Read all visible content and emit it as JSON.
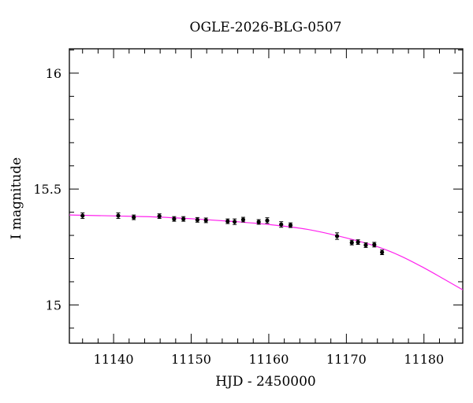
{
  "chart_data": {
    "type": "scatter",
    "title": "OGLE-2026-BLG-0507",
    "xlabel": "HJD - 2450000",
    "ylabel": "I magnitude",
    "xlim": [
      11134.3,
      11185
    ],
    "ylim": [
      16.105,
      14.835
    ],
    "y_inverted": true,
    "x_major_ticks": [
      11140,
      11150,
      11160,
      11170,
      11180
    ],
    "x_tick_labels": [
      "11140",
      "11150",
      "11160",
      "11170",
      "11180"
    ],
    "x_minor_step": 2,
    "y_major_ticks": [
      15,
      15.5,
      16
    ],
    "y_tick_labels": [
      "15",
      "15.5",
      "16"
    ],
    "y_minor_step": 0.1,
    "grid": false,
    "series": [
      {
        "kind": "points_with_errorbars",
        "color": "#000000",
        "points": [
          {
            "x": 11136.0,
            "y": 15.385,
            "err": 0.012
          },
          {
            "x": 11140.6,
            "y": 15.385,
            "err": 0.012
          },
          {
            "x": 11142.6,
            "y": 15.378,
            "err": 0.01
          },
          {
            "x": 11145.9,
            "y": 15.383,
            "err": 0.01
          },
          {
            "x": 11147.8,
            "y": 15.371,
            "err": 0.01
          },
          {
            "x": 11149.0,
            "y": 15.371,
            "err": 0.01
          },
          {
            "x": 11150.8,
            "y": 15.367,
            "err": 0.01
          },
          {
            "x": 11151.9,
            "y": 15.365,
            "err": 0.01
          },
          {
            "x": 11154.7,
            "y": 15.361,
            "err": 0.01
          },
          {
            "x": 11155.6,
            "y": 15.359,
            "err": 0.012
          },
          {
            "x": 11156.7,
            "y": 15.368,
            "err": 0.01
          },
          {
            "x": 11158.7,
            "y": 15.358,
            "err": 0.01
          },
          {
            "x": 11159.8,
            "y": 15.364,
            "err": 0.012
          },
          {
            "x": 11161.6,
            "y": 15.347,
            "err": 0.012
          },
          {
            "x": 11162.8,
            "y": 15.344,
            "err": 0.01
          },
          {
            "x": 11168.8,
            "y": 15.297,
            "err": 0.014
          },
          {
            "x": 11170.7,
            "y": 15.269,
            "err": 0.01
          },
          {
            "x": 11171.5,
            "y": 15.271,
            "err": 0.01
          },
          {
            "x": 11172.5,
            "y": 15.258,
            "err": 0.01
          },
          {
            "x": 11173.6,
            "y": 15.26,
            "err": 0.01
          },
          {
            "x": 11174.6,
            "y": 15.227,
            "err": 0.01
          }
        ]
      },
      {
        "kind": "model_curve",
        "color": "#ff22ee",
        "points": [
          {
            "x": 11134.3,
            "y": 15.388
          },
          {
            "x": 11140,
            "y": 15.384
          },
          {
            "x": 11145,
            "y": 15.38
          },
          {
            "x": 11150,
            "y": 15.372
          },
          {
            "x": 11155,
            "y": 15.361
          },
          {
            "x": 11160,
            "y": 15.347
          },
          {
            "x": 11165,
            "y": 15.326
          },
          {
            "x": 11170,
            "y": 15.289
          },
          {
            "x": 11174,
            "y": 15.251
          },
          {
            "x": 11177,
            "y": 15.211
          },
          {
            "x": 11180,
            "y": 15.16
          },
          {
            "x": 11182.5,
            "y": 15.113
          },
          {
            "x": 11185,
            "y": 15.065
          }
        ]
      }
    ]
  }
}
